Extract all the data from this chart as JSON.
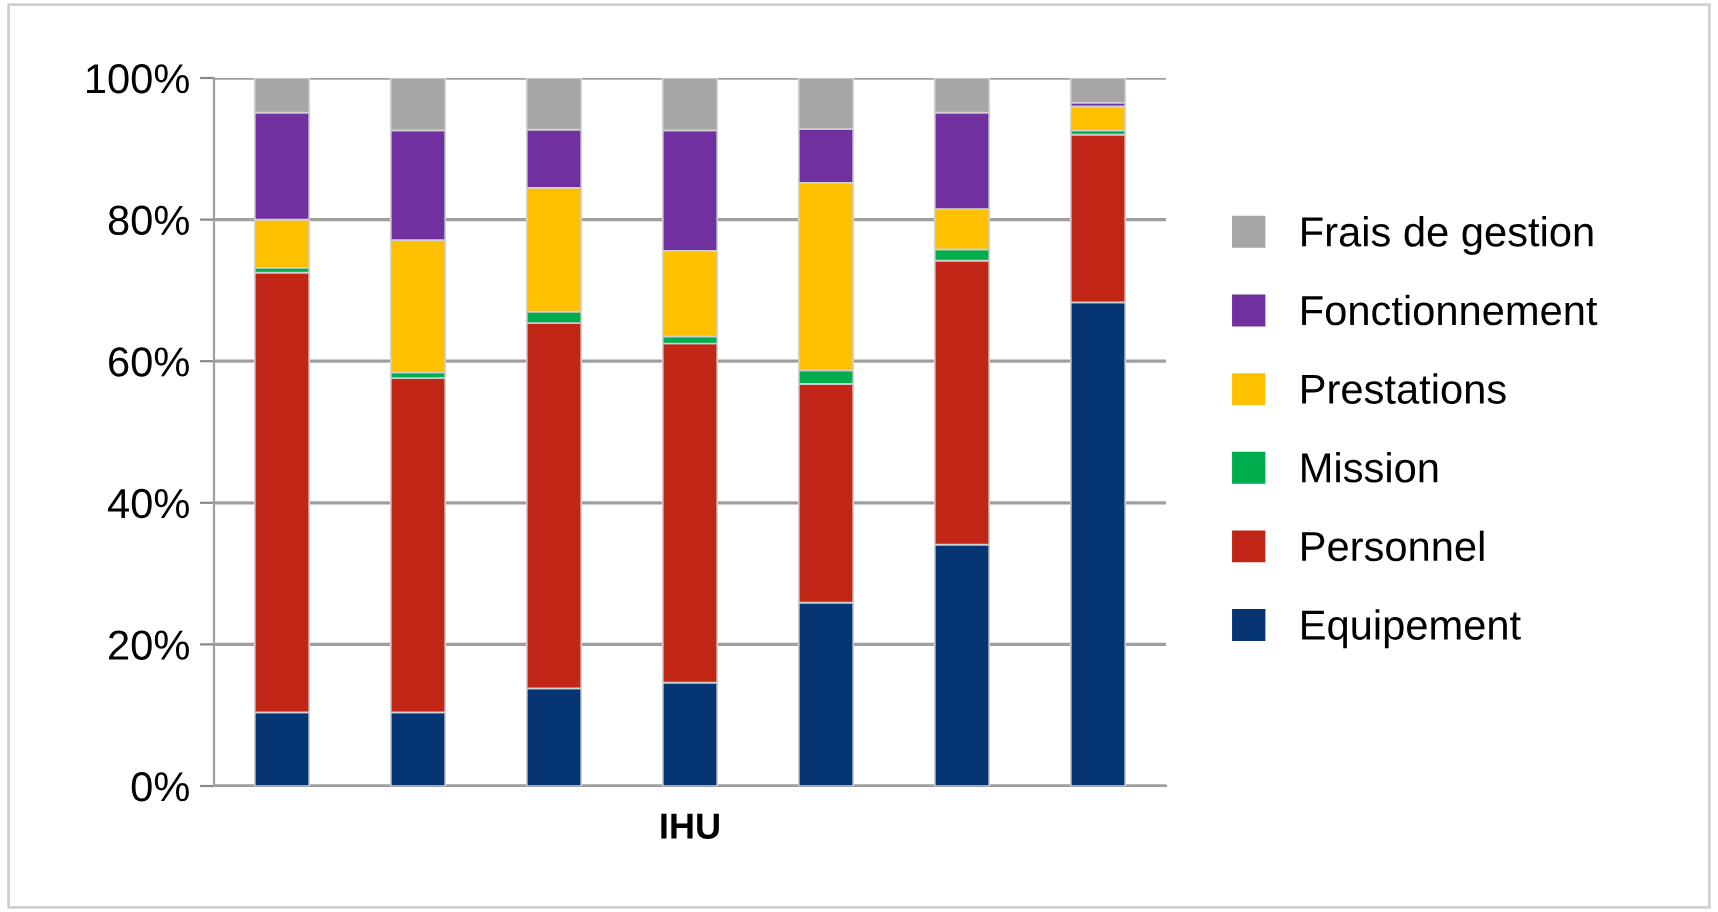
{
  "chart_data": {
    "type": "bar",
    "stacked": true,
    "xlabel": "IHU",
    "categories": [
      null,
      null,
      null,
      null,
      null,
      null,
      null
    ],
    "ylim": [
      0,
      100
    ],
    "yticks": [
      {
        "value": 0,
        "label": "0%"
      },
      {
        "value": 20,
        "label": "20%"
      },
      {
        "value": 40,
        "label": "40%"
      },
      {
        "value": 60,
        "label": "60%"
      },
      {
        "value": 80,
        "label": "80%"
      },
      {
        "value": 100,
        "label": "100%"
      }
    ],
    "grid": "y",
    "legend": "right",
    "series": [
      {
        "name": "Equipement",
        "color": "#053573",
        "values": [
          10.4,
          10.4,
          13.8,
          14.6,
          25.9,
          34.1,
          68.3
        ]
      },
      {
        "name": "Personnel",
        "color": "#c12616",
        "values": [
          62.1,
          47.2,
          51.6,
          47.9,
          30.9,
          40.1,
          23.7
        ]
      },
      {
        "name": "Mission",
        "color": "#00ad4d",
        "values": [
          0.7,
          0.8,
          1.6,
          1.0,
          1.9,
          1.6,
          0.6
        ]
      },
      {
        "name": "Prestations",
        "color": "#ffc000",
        "values": [
          6.8,
          18.7,
          17.5,
          12.1,
          26.5,
          5.7,
          3.4
        ]
      },
      {
        "name": "Fonctionnement",
        "color": "#7030a0",
        "values": [
          15.1,
          15.5,
          8.2,
          17.0,
          7.6,
          13.6,
          0.5
        ]
      },
      {
        "name": "Frais de gestion",
        "color": "#a6a6a6",
        "values": [
          4.9,
          7.4,
          7.3,
          7.4,
          7.2,
          4.9,
          3.5
        ]
      }
    ]
  }
}
